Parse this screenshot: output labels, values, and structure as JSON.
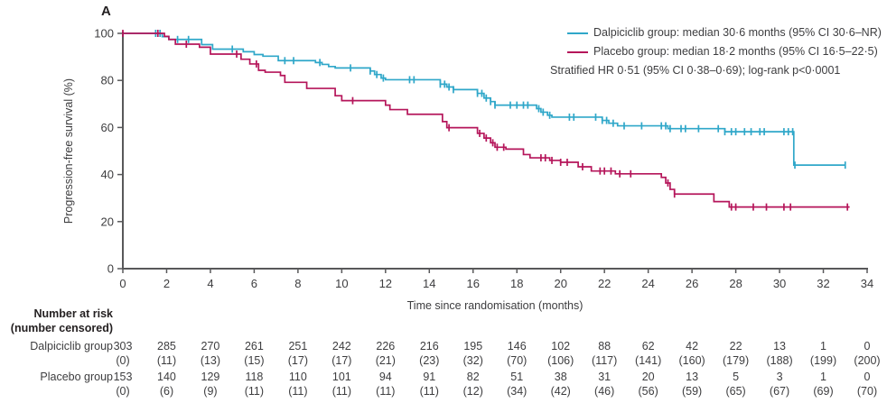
{
  "panel_label": "A",
  "colors": {
    "dalpiciclib": "#2fa7c9",
    "placebo": "#b5155a",
    "axis": "#58585a",
    "text": "#3d3d3f"
  },
  "axes": {
    "x": {
      "label": "Time since randomisation (months)",
      "min": 0,
      "max": 34,
      "tick_step": 2
    },
    "y": {
      "label": "Progression-free survival (%)",
      "min": 0,
      "max": 100,
      "tick_step": 20
    }
  },
  "legend": {
    "items": [
      {
        "name": "dalpiciclib",
        "label": "Dalpiciclib group: median 30·6 months (95% CI 30·6–NR)",
        "color": "#2fa7c9"
      },
      {
        "name": "placebo",
        "label": "Placebo group: median 18·2 months (95% CI 16·5–22·5)",
        "color": "#b5155a"
      }
    ],
    "note": "Stratified HR 0·51 (95% CI 0·38–0·69); log-rank p<0·0001"
  },
  "chart_data": {
    "type": "line",
    "subtype": "kaplan-meier-step",
    "title": "",
    "xlabel": "Time since randomisation (months)",
    "ylabel": "Progression-free survival (%)",
    "xlim": [
      0,
      34
    ],
    "ylim": [
      0,
      100
    ],
    "grid": false,
    "legend_position": "top-right",
    "series": [
      {
        "name": "Dalpiciclib group",
        "color": "#2fa7c9",
        "end_time": 33.0,
        "steps": [
          [
            0,
            100
          ],
          [
            1.8,
            98.6
          ],
          [
            2.1,
            97.4
          ],
          [
            3.6,
            95.2
          ],
          [
            4.1,
            93.3
          ],
          [
            5.5,
            92.2
          ],
          [
            6.0,
            91.0
          ],
          [
            6.4,
            90.3
          ],
          [
            7.1,
            88.4
          ],
          [
            8.8,
            87.6
          ],
          [
            9.1,
            86.8
          ],
          [
            9.4,
            85.9
          ],
          [
            9.7,
            85.3
          ],
          [
            11.3,
            84.0
          ],
          [
            11.5,
            82.5
          ],
          [
            11.8,
            81.0
          ],
          [
            12.0,
            80.3
          ],
          [
            14.5,
            78.4
          ],
          [
            14.8,
            77.2
          ],
          [
            15.1,
            76.1
          ],
          [
            16.2,
            74.5
          ],
          [
            16.5,
            72.5
          ],
          [
            16.8,
            71.0
          ],
          [
            17.0,
            69.5
          ],
          [
            18.9,
            68.0
          ],
          [
            19.1,
            66.5
          ],
          [
            19.4,
            65.2
          ],
          [
            19.6,
            64.4
          ],
          [
            21.9,
            63.0
          ],
          [
            22.2,
            61.8
          ],
          [
            22.6,
            60.7
          ],
          [
            24.9,
            59.5
          ],
          [
            27.5,
            58.2
          ],
          [
            30.65,
            44.0
          ]
        ],
        "censor_times": [
          1.5,
          1.7,
          2.5,
          3.0,
          5.0,
          7.4,
          7.8,
          9.0,
          10.4,
          11.3,
          11.6,
          11.9,
          13.1,
          13.3,
          14.5,
          14.7,
          14.9,
          15.1,
          16.2,
          16.4,
          16.6,
          16.8,
          17.0,
          17.7,
          18.0,
          18.3,
          18.5,
          19.0,
          19.2,
          19.5,
          20.4,
          20.6,
          21.6,
          21.9,
          22.1,
          22.4,
          22.9,
          23.7,
          24.6,
          24.8,
          25.0,
          25.5,
          25.7,
          26.3,
          27.2,
          27.5,
          27.8,
          28.0,
          28.4,
          28.7,
          29.1,
          29.3,
          30.2,
          30.4,
          30.6,
          30.7,
          33.0
        ]
      },
      {
        "name": "Placebo group",
        "color": "#b5155a",
        "end_time": 33.2,
        "steps": [
          [
            0,
            100
          ],
          [
            1.9,
            98.7
          ],
          [
            2.1,
            97.4
          ],
          [
            2.4,
            95.4
          ],
          [
            3.5,
            94.1
          ],
          [
            4.0,
            91.2
          ],
          [
            5.4,
            89.0
          ],
          [
            5.8,
            87.0
          ],
          [
            6.2,
            84.3
          ],
          [
            6.5,
            83.5
          ],
          [
            7.2,
            82.1
          ],
          [
            7.4,
            79.2
          ],
          [
            8.4,
            76.6
          ],
          [
            9.7,
            73.5
          ],
          [
            10.0,
            71.4
          ],
          [
            12.0,
            69.5
          ],
          [
            12.2,
            67.6
          ],
          [
            13.0,
            65.6
          ],
          [
            14.6,
            62.5
          ],
          [
            14.8,
            59.9
          ],
          [
            16.2,
            57.5
          ],
          [
            16.5,
            55.5
          ],
          [
            16.8,
            53.5
          ],
          [
            17.0,
            51.6
          ],
          [
            17.5,
            50.8
          ],
          [
            18.3,
            48.5
          ],
          [
            18.6,
            47.1
          ],
          [
            19.5,
            46.0
          ],
          [
            20.0,
            45.2
          ],
          [
            20.8,
            43.3
          ],
          [
            21.4,
            41.5
          ],
          [
            22.5,
            40.3
          ],
          [
            24.6,
            38.8
          ],
          [
            24.8,
            36.4
          ],
          [
            25.0,
            33.7
          ],
          [
            25.2,
            31.7
          ],
          [
            27.0,
            28.5
          ],
          [
            27.7,
            26.2
          ]
        ],
        "censor_times": [
          0,
          1.6,
          2.9,
          5.2,
          6.1,
          10.5,
          14.9,
          16.3,
          16.6,
          16.9,
          17.1,
          17.4,
          19.1,
          19.3,
          19.6,
          20.0,
          20.3,
          21.0,
          21.8,
          22.0,
          22.3,
          22.7,
          23.2,
          24.9,
          25.2,
          27.8,
          28.0,
          28.8,
          29.4,
          30.2,
          30.5,
          33.1
        ]
      }
    ]
  },
  "risk_table": {
    "header_line1": "Number at risk",
    "header_line2": "(number censored)",
    "time_points": [
      0,
      2,
      4,
      6,
      8,
      10,
      12,
      14,
      16,
      18,
      20,
      22,
      24,
      26,
      28,
      30,
      32,
      34
    ],
    "rows": [
      {
        "label": "Dalpiciclib group",
        "at_risk": [
          "303",
          "285",
          "270",
          "261",
          "251",
          "242",
          "226",
          "216",
          "195",
          "146",
          "102",
          "88",
          "62",
          "42",
          "22",
          "13",
          "1",
          "0"
        ],
        "censored": [
          "(0)",
          "(11)",
          "(13)",
          "(15)",
          "(17)",
          "(17)",
          "(21)",
          "(23)",
          "(32)",
          "(70)",
          "(106)",
          "(117)",
          "(141)",
          "(160)",
          "(179)",
          "(188)",
          "(199)",
          "(200)"
        ]
      },
      {
        "label": "Placebo group",
        "at_risk": [
          "153",
          "140",
          "129",
          "118",
          "110",
          "101",
          "94",
          "91",
          "82",
          "51",
          "38",
          "31",
          "20",
          "13",
          "5",
          "3",
          "1",
          "0"
        ],
        "censored": [
          "(0)",
          "(6)",
          "(9)",
          "(11)",
          "(11)",
          "(11)",
          "(11)",
          "(11)",
          "(12)",
          "(34)",
          "(42)",
          "(46)",
          "(56)",
          "(59)",
          "(65)",
          "(67)",
          "(69)",
          "(70)"
        ]
      }
    ]
  }
}
